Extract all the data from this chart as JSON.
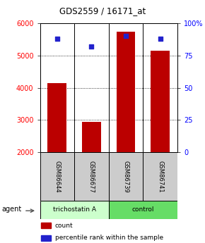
{
  "title": "GDS2559 / 16171_at",
  "samples": [
    "GSM86644",
    "GSM86677",
    "GSM86739",
    "GSM86741"
  ],
  "counts": [
    4150,
    2950,
    5750,
    5150
  ],
  "percentiles": [
    88,
    82,
    90,
    88
  ],
  "ylim_left": [
    2000,
    6000
  ],
  "ylim_right": [
    0,
    100
  ],
  "yticks_left": [
    2000,
    3000,
    4000,
    5000,
    6000
  ],
  "yticks_right": [
    0,
    25,
    50,
    75,
    100
  ],
  "yticklabels_right": [
    "0",
    "25",
    "50",
    "75",
    "100%"
  ],
  "bar_color": "#bb0000",
  "dot_color": "#2222cc",
  "groups": [
    {
      "label": "trichostatin A",
      "indices": [
        0,
        1
      ],
      "color": "#ccffcc"
    },
    {
      "label": "control",
      "indices": [
        2,
        3
      ],
      "color": "#66dd66"
    }
  ],
  "sample_box_color": "#cccccc",
  "agent_label": "agent",
  "legend_count_label": "count",
  "legend_pct_label": "percentile rank within the sample",
  "bar_width": 0.55,
  "background_color": "#ffffff",
  "plot_bg_color": "#ffffff"
}
